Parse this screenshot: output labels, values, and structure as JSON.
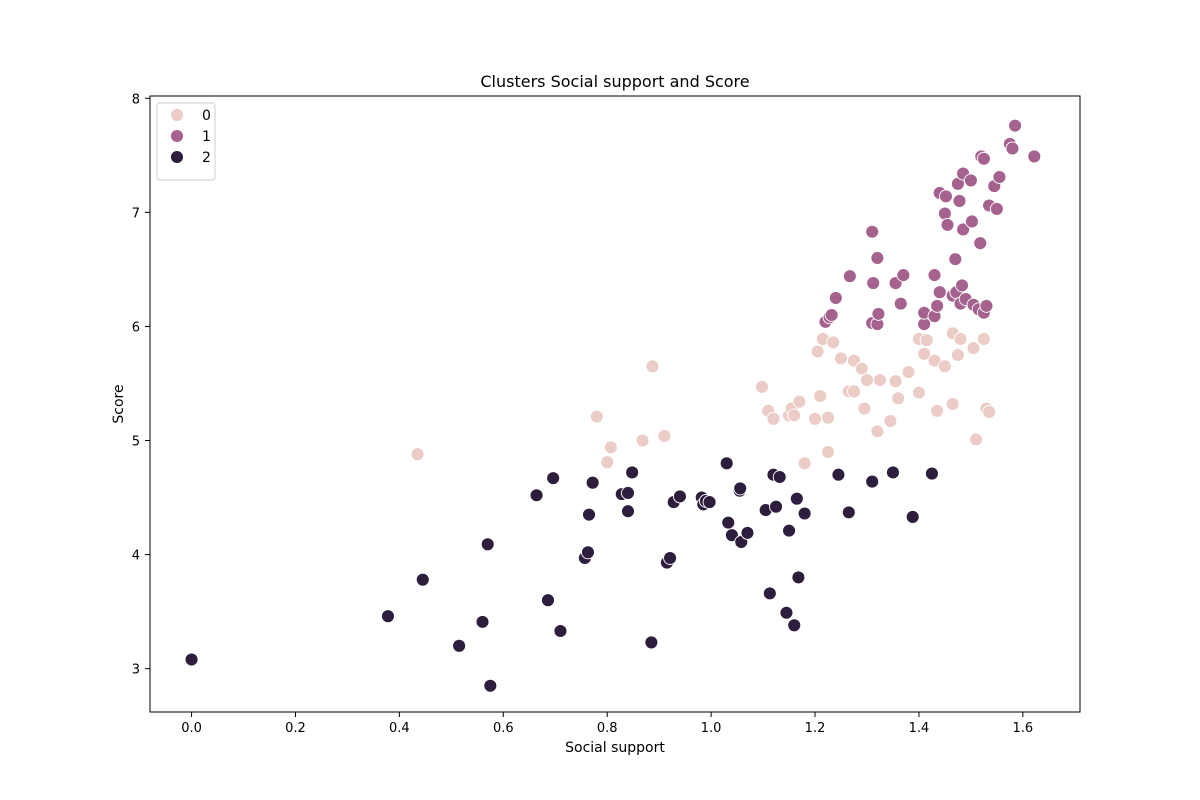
{
  "chart_data": {
    "type": "scatter",
    "title": "Clusters Social support and Score",
    "xlabel": "Social support",
    "ylabel": "Score",
    "xlim": [
      -0.08,
      1.71
    ],
    "ylim": [
      2.62,
      8.02
    ],
    "xticks": [
      0.0,
      0.2,
      0.4,
      0.6,
      0.8,
      1.0,
      1.2,
      1.4,
      1.6
    ],
    "xtick_labels": [
      "0.0",
      "0.2",
      "0.4",
      "0.6",
      "0.8",
      "1.0",
      "1.2",
      "1.4",
      "1.6"
    ],
    "yticks": [
      3,
      4,
      5,
      6,
      7,
      8
    ],
    "ytick_labels": [
      "3",
      "4",
      "5",
      "6",
      "7",
      "8"
    ],
    "grid": false,
    "legend_position": "top-left",
    "series": [
      {
        "name": "0",
        "color": "#ebccc6",
        "points": [
          [
            0.435,
            4.88
          ],
          [
            0.78,
            5.21
          ],
          [
            0.8,
            4.81
          ],
          [
            0.807,
            4.94
          ],
          [
            0.868,
            5.0
          ],
          [
            0.887,
            5.65
          ],
          [
            0.91,
            5.04
          ],
          [
            1.098,
            5.47
          ],
          [
            1.11,
            5.26
          ],
          [
            1.12,
            5.19
          ],
          [
            1.15,
            5.22
          ],
          [
            1.155,
            5.28
          ],
          [
            1.16,
            5.22
          ],
          [
            1.17,
            5.34
          ],
          [
            1.18,
            4.8
          ],
          [
            1.2,
            5.19
          ],
          [
            1.205,
            5.78
          ],
          [
            1.21,
            5.39
          ],
          [
            1.215,
            5.89
          ],
          [
            1.225,
            5.2
          ],
          [
            1.225,
            4.9
          ],
          [
            1.235,
            5.86
          ],
          [
            1.25,
            5.72
          ],
          [
            1.265,
            5.43
          ],
          [
            1.275,
            5.7
          ],
          [
            1.275,
            5.43
          ],
          [
            1.29,
            5.63
          ],
          [
            1.295,
            5.28
          ],
          [
            1.3,
            5.53
          ],
          [
            1.32,
            5.08
          ],
          [
            1.325,
            5.53
          ],
          [
            1.345,
            5.17
          ],
          [
            1.355,
            5.52
          ],
          [
            1.36,
            5.37
          ],
          [
            1.38,
            5.6
          ],
          [
            1.4,
            5.89
          ],
          [
            1.4,
            5.42
          ],
          [
            1.41,
            5.76
          ],
          [
            1.415,
            5.88
          ],
          [
            1.43,
            5.7
          ],
          [
            1.435,
            5.26
          ],
          [
            1.45,
            5.65
          ],
          [
            1.465,
            5.32
          ],
          [
            1.465,
            5.94
          ],
          [
            1.475,
            5.75
          ],
          [
            1.48,
            5.89
          ],
          [
            1.505,
            5.81
          ],
          [
            1.51,
            5.01
          ],
          [
            1.525,
            5.89
          ],
          [
            1.53,
            5.28
          ],
          [
            1.535,
            5.25
          ]
        ]
      },
      {
        "name": "1",
        "color": "#a5628f",
        "points": [
          [
            1.22,
            6.04
          ],
          [
            1.228,
            6.08
          ],
          [
            1.232,
            6.1
          ],
          [
            1.24,
            6.25
          ],
          [
            1.267,
            6.44
          ],
          [
            1.31,
            6.83
          ],
          [
            1.31,
            6.03
          ],
          [
            1.312,
            6.38
          ],
          [
            1.32,
            6.02
          ],
          [
            1.32,
            6.6
          ],
          [
            1.322,
            6.11
          ],
          [
            1.355,
            6.38
          ],
          [
            1.365,
            6.2
          ],
          [
            1.37,
            6.45
          ],
          [
            1.41,
            6.02
          ],
          [
            1.41,
            6.12
          ],
          [
            1.43,
            6.45
          ],
          [
            1.43,
            6.09
          ],
          [
            1.435,
            6.18
          ],
          [
            1.44,
            6.3
          ],
          [
            1.44,
            7.17
          ],
          [
            1.45,
            6.99
          ],
          [
            1.452,
            7.14
          ],
          [
            1.455,
            6.89
          ],
          [
            1.465,
            6.27
          ],
          [
            1.47,
            6.59
          ],
          [
            1.472,
            6.3
          ],
          [
            1.475,
            7.25
          ],
          [
            1.478,
            7.1
          ],
          [
            1.48,
            6.2
          ],
          [
            1.483,
            6.36
          ],
          [
            1.485,
            6.85
          ],
          [
            1.485,
            7.34
          ],
          [
            1.49,
            6.24
          ],
          [
            1.5,
            7.28
          ],
          [
            1.502,
            6.92
          ],
          [
            1.505,
            6.19
          ],
          [
            1.515,
            6.15
          ],
          [
            1.518,
            6.73
          ],
          [
            1.52,
            7.49
          ],
          [
            1.525,
            6.12
          ],
          [
            1.525,
            7.47
          ],
          [
            1.53,
            6.18
          ],
          [
            1.535,
            7.06
          ],
          [
            1.545,
            7.23
          ],
          [
            1.55,
            7.03
          ],
          [
            1.555,
            7.31
          ],
          [
            1.575,
            7.6
          ],
          [
            1.58,
            7.56
          ],
          [
            1.585,
            7.76
          ],
          [
            1.622,
            7.49
          ]
        ]
      },
      {
        "name": "2",
        "color": "#2d1e3e",
        "points": [
          [
            0.0,
            3.08
          ],
          [
            0.378,
            3.46
          ],
          [
            0.445,
            3.78
          ],
          [
            0.515,
            3.2
          ],
          [
            0.56,
            3.41
          ],
          [
            0.57,
            4.09
          ],
          [
            0.575,
            2.85
          ],
          [
            0.664,
            4.52
          ],
          [
            0.686,
            3.6
          ],
          [
            0.696,
            4.67
          ],
          [
            0.71,
            3.33
          ],
          [
            0.757,
            3.97
          ],
          [
            0.763,
            4.02
          ],
          [
            0.765,
            4.35
          ],
          [
            0.772,
            4.63
          ],
          [
            0.828,
            4.53
          ],
          [
            0.84,
            4.54
          ],
          [
            0.84,
            4.38
          ],
          [
            0.848,
            4.72
          ],
          [
            0.885,
            3.23
          ],
          [
            0.915,
            3.93
          ],
          [
            0.921,
            3.97
          ],
          [
            0.928,
            4.46
          ],
          [
            0.94,
            4.51
          ],
          [
            0.982,
            4.5
          ],
          [
            0.985,
            4.44
          ],
          [
            0.99,
            4.47
          ],
          [
            0.997,
            4.46
          ],
          [
            1.03,
            4.8
          ],
          [
            1.033,
            4.28
          ],
          [
            1.04,
            4.17
          ],
          [
            1.055,
            4.56
          ],
          [
            1.056,
            4.58
          ],
          [
            1.058,
            4.11
          ],
          [
            1.07,
            4.19
          ],
          [
            1.105,
            4.39
          ],
          [
            1.113,
            3.66
          ],
          [
            1.12,
            4.7
          ],
          [
            1.125,
            4.42
          ],
          [
            1.132,
            4.68
          ],
          [
            1.145,
            3.49
          ],
          [
            1.15,
            4.21
          ],
          [
            1.16,
            3.38
          ],
          [
            1.165,
            4.49
          ],
          [
            1.168,
            3.8
          ],
          [
            1.18,
            4.36
          ],
          [
            1.245,
            4.7
          ],
          [
            1.265,
            4.37
          ],
          [
            1.31,
            4.64
          ],
          [
            1.35,
            4.72
          ],
          [
            1.388,
            4.33
          ],
          [
            1.425,
            4.71
          ]
        ]
      }
    ]
  }
}
